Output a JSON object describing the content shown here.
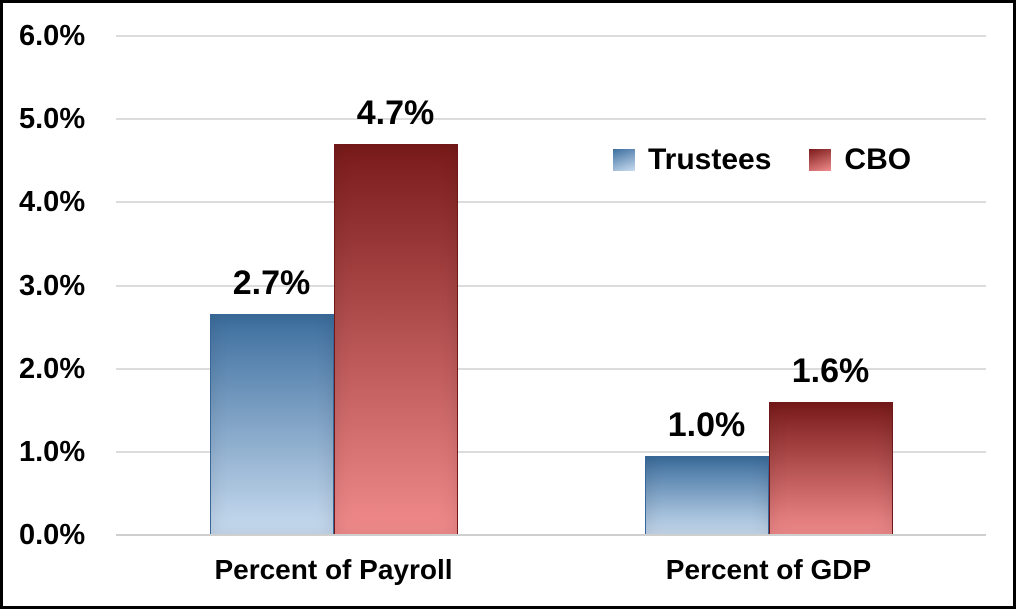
{
  "figure": {
    "background_color": "#ffffff",
    "border_color": "#000000",
    "gridline_color": "#DCDCDC",
    "axis_line_color": "#CFCFCF",
    "text_color": "#000000"
  },
  "chart_data": {
    "type": "bar",
    "title": "",
    "xlabel": "",
    "ylabel": "",
    "categories": [
      "Percent of Payroll",
      "Percent of GDP"
    ],
    "series": [
      {
        "name": "Trustees",
        "values": [
          2.66,
          0.95
        ],
        "data_labels": [
          "2.7%",
          "1.0%"
        ],
        "color_top": "#3C6E9E",
        "color_bottom": "#C9DCF0",
        "border_color": "#37679A"
      },
      {
        "name": "CBO",
        "values": [
          4.7,
          1.6
        ],
        "data_labels": [
          "4.7%",
          "1.6%"
        ],
        "color_top": "#7A1A1A",
        "color_bottom": "#F28C8C",
        "border_color": "#701818"
      }
    ],
    "ylim": [
      0,
      6
    ],
    "ytick_labels": [
      "0.0%",
      "1.0%",
      "2.0%",
      "3.0%",
      "4.0%",
      "5.0%",
      "6.0%"
    ],
    "grid": true,
    "legend": {
      "position": "top-right",
      "entries": [
        "Trustees",
        "CBO"
      ]
    }
  }
}
